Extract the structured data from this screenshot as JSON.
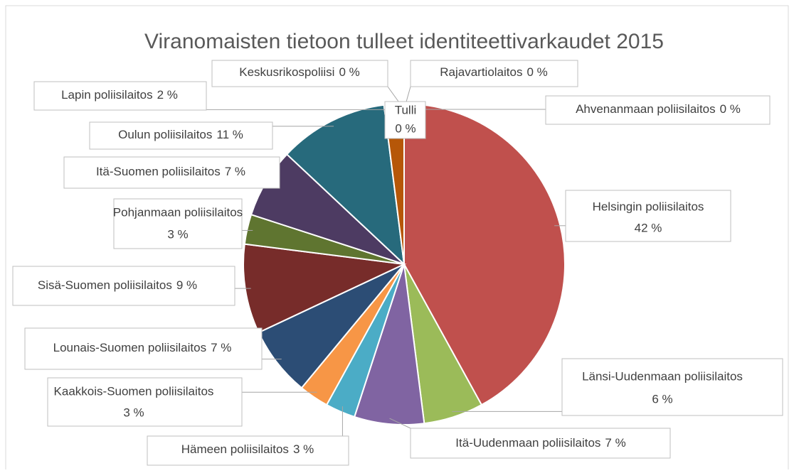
{
  "chart_data": {
    "type": "pie",
    "title": "Viranomaisten tietoon tulleet identiteettivarkaudet 2015",
    "categories": [
      "Helsingin poliisilaitos",
      "Länsi-Uudenmaan poliisilaitos",
      "Itä-Uudenmaan poliisilaitos",
      "Hämeen poliisilaitos",
      "Kaakkois-Suomen poliisilaitos",
      "Lounais-Suomen poliisilaitos",
      "Sisä-Suomen poliisilaitos",
      "Pohjanmaan poliisilaitos",
      "Itä-Suomen poliisilaitos",
      "Oulun poliisilaitos",
      "Lapin poliisilaitos",
      "Keskusrikospoliisi",
      "Rajavartiolaitos",
      "Ahvenanmaan poliisilaitos",
      "Tulli"
    ],
    "values": [
      42,
      6,
      7,
      3,
      3,
      7,
      9,
      3,
      7,
      11,
      2,
      0,
      0,
      0,
      0
    ],
    "value_labels": [
      "42 %",
      "6 %",
      "7 %",
      "3 %",
      "3 %",
      "7 %",
      "9 %",
      "3 %",
      "7 %",
      "11 %",
      "2 %",
      "0 %",
      "0 %",
      "0 %",
      "0 %"
    ],
    "colors": [
      "#c0504d",
      "#9bbb59",
      "#8064a2",
      "#4bacc6",
      "#f79646",
      "#2c4d75",
      "#772c2a",
      "#5f7530",
      "#4d3b62",
      "#276a7c",
      "#b65708",
      "#729aca",
      "#d99694",
      "#c3d69b",
      "#b3a2c7"
    ]
  }
}
